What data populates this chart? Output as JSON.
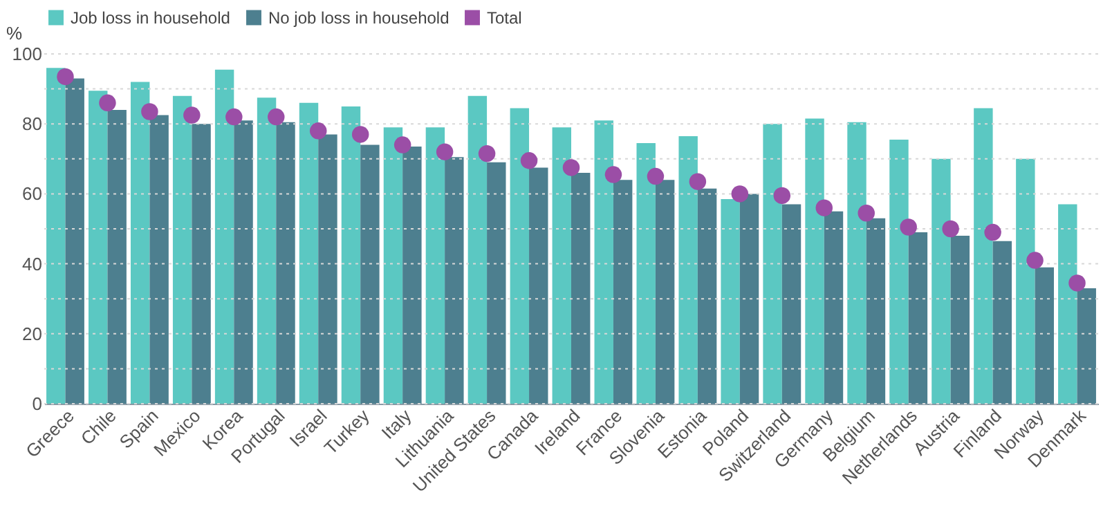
{
  "chart_data": {
    "type": "bar",
    "ylabel": "%",
    "categories": [
      "Greece",
      "Chile",
      "Spain",
      "Mexico",
      "Korea",
      "Portugal",
      "Israel",
      "Turkey",
      "Italy",
      "Lithuania",
      "United States",
      "Canada",
      "Ireland",
      "France",
      "Slovenia",
      "Estonia",
      "Poland",
      "Switzerland",
      "Germany",
      "Belgium",
      "Netherlands",
      "Austria",
      "Finland",
      "Norway",
      "Denmark"
    ],
    "series": [
      {
        "name": "Job loss in household",
        "type": "bar",
        "color": "#5bc8c2",
        "values": [
          96,
          89.5,
          92,
          88,
          95.5,
          87.5,
          86,
          85,
          79,
          79,
          88,
          84.5,
          79,
          81,
          74.5,
          76.5,
          58.5,
          80,
          81.5,
          80.5,
          75.5,
          70,
          84.5,
          70,
          57
        ]
      },
      {
        "name": "No job loss in household",
        "type": "bar",
        "color": "#4d7f8f",
        "values": [
          93,
          84,
          82.5,
          80,
          81,
          80.5,
          77,
          74,
          73.5,
          70.5,
          69,
          67.5,
          66,
          64,
          64,
          61.5,
          60,
          57,
          55,
          53,
          49,
          48,
          46.5,
          39,
          33
        ]
      },
      {
        "name": "Total",
        "type": "scatter",
        "color": "#9b4ea6",
        "values": [
          93.5,
          86,
          83.5,
          82.5,
          82,
          82,
          78,
          77,
          74,
          72,
          71.5,
          69.5,
          67.5,
          65.5,
          65,
          63.5,
          60,
          59.5,
          56,
          54.5,
          50.5,
          50,
          49,
          41,
          34.5
        ]
      }
    ],
    "ylim": [
      0,
      100
    ],
    "yticks": [
      0,
      {
        "value": 10,
        "label": null
      },
      20,
      {
        "value": 30,
        "label": null
      },
      40,
      {
        "value": 50,
        "label": null
      },
      60,
      {
        "value": 70,
        "label": null
      },
      80,
      {
        "value": 90,
        "label": null
      },
      100
    ],
    "grid": "y",
    "legend": "top",
    "marker": "circle"
  }
}
